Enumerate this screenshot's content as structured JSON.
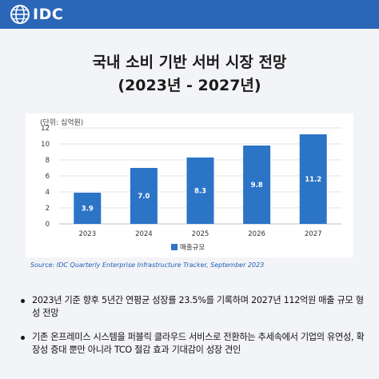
{
  "brand": {
    "logo_text": "IDC"
  },
  "header": {
    "title_line1": "국내 소비 기반 서버 시장 전망",
    "title_line2": "(2023년 - 2027년)"
  },
  "chart_data": {
    "type": "bar",
    "unit_label": "(단위: 십억원)",
    "categories": [
      "2023",
      "2024",
      "2025",
      "2026",
      "2027"
    ],
    "series": [
      {
        "name": "매출규모",
        "values": [
          3.9,
          7.0,
          8.3,
          9.8,
          11.2
        ]
      }
    ],
    "data_labels": [
      "3.9",
      "7.0",
      "8.3",
      "9.8",
      "11.2"
    ],
    "yticks": [
      0,
      2,
      4,
      6,
      8,
      10,
      12
    ],
    "ylim": [
      0,
      12
    ],
    "grid": true,
    "legend": "bottom",
    "bar_color": "#2c74c6"
  },
  "source": "Source: IDC Quarterly Enterprise Infrastructure Tracker, September 2023",
  "bullets": [
    "2023년 기준 향후 5년간 연평균 성장률 23.5%를 기록하며 2027년 112억원 매출 규모 형성 전망",
    "기존 온프레미스 시스템을 퍼블릭 클라우드 서비스로 전환하는 추세속에서 기업의 유연성, 확장성 증대 뿐만 아니라 TCO 절감 효과 기대감이 성장 견인"
  ],
  "colors": {
    "brand_blue": "#2b66b8",
    "bar": "#2c74c6",
    "source_text": "#1f5fb5"
  }
}
